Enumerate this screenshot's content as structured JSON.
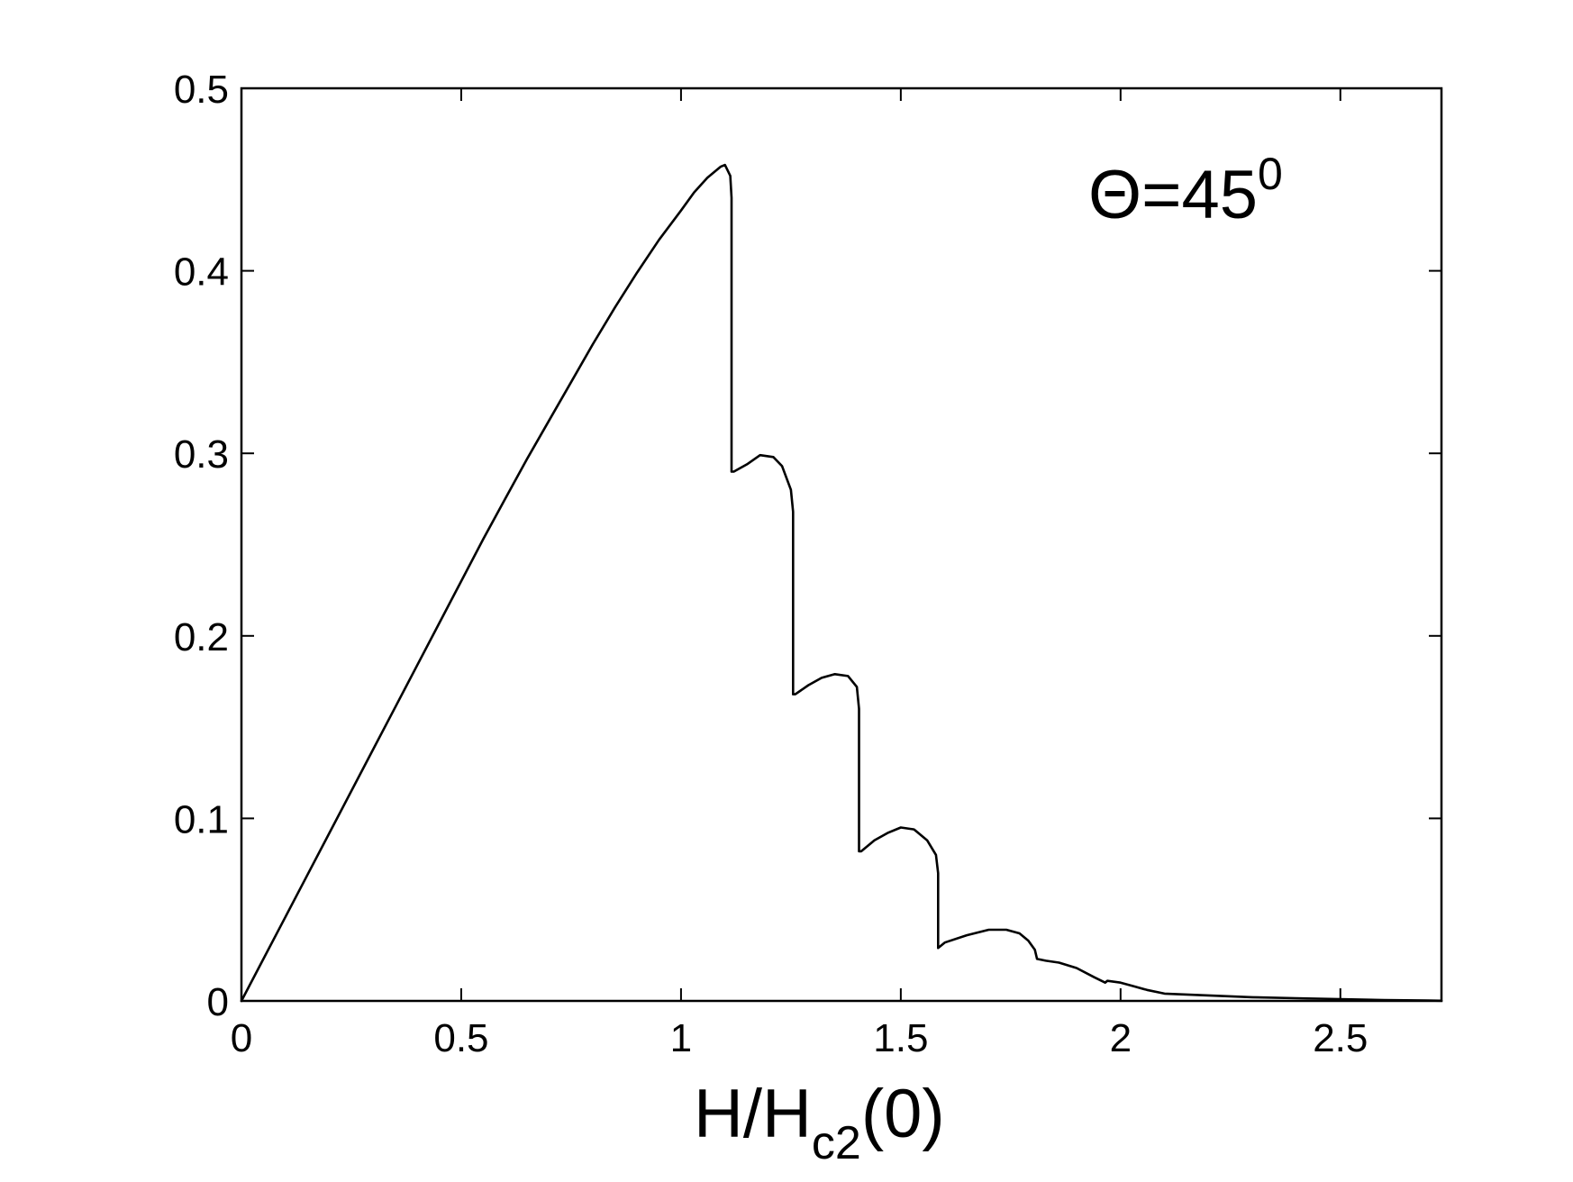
{
  "chart_data": {
    "type": "line",
    "title": "",
    "xlabel": {
      "main": "H/H",
      "subscript": "c2",
      "suffix": "(0)"
    },
    "ylabel": "",
    "annotation": {
      "main": "Θ=45",
      "superscript": "0"
    },
    "xlim": [
      0,
      2.73
    ],
    "ylim": [
      0,
      0.5
    ],
    "xticks": [
      0,
      0.5,
      1,
      1.5,
      2,
      2.5
    ],
    "xtick_labels": [
      "0",
      "0.5",
      "1",
      "1.5",
      "2",
      "2.5"
    ],
    "yticks": [
      0,
      0.1,
      0.2,
      0.3,
      0.4,
      0.5
    ],
    "ytick_labels": [
      "0",
      "0.1",
      "0.2",
      "0.3",
      "0.4",
      "0.5"
    ],
    "grid": false,
    "series": [
      {
        "color": "#000000",
        "x": [
          0,
          0.05,
          0.1,
          0.15,
          0.2,
          0.25,
          0.3,
          0.35,
          0.4,
          0.45,
          0.5,
          0.55,
          0.6,
          0.65,
          0.7,
          0.75,
          0.8,
          0.85,
          0.9,
          0.95,
          1.0,
          1.03,
          1.06,
          1.09,
          1.1,
          1.112,
          1.115,
          1.115,
          1.12,
          1.15,
          1.18,
          1.21,
          1.23,
          1.25,
          1.255,
          1.255,
          1.26,
          1.29,
          1.32,
          1.35,
          1.38,
          1.4,
          1.405,
          1.405,
          1.41,
          1.44,
          1.47,
          1.5,
          1.53,
          1.56,
          1.58,
          1.585,
          1.585,
          1.6,
          1.65,
          1.7,
          1.74,
          1.77,
          1.79,
          1.805,
          1.81,
          1.83,
          1.86,
          1.9,
          1.94,
          1.965,
          1.97,
          2.0,
          2.03,
          2.06,
          2.1,
          2.2,
          2.3,
          2.4,
          2.5,
          2.6,
          2.7,
          2.73
        ],
        "y": [
          0.0,
          0.023,
          0.046,
          0.069,
          0.092,
          0.115,
          0.138,
          0.161,
          0.184,
          0.207,
          0.23,
          0.253,
          0.275,
          0.297,
          0.318,
          0.339,
          0.36,
          0.38,
          0.399,
          0.417,
          0.433,
          0.443,
          0.451,
          0.457,
          0.458,
          0.452,
          0.44,
          0.29,
          0.29,
          0.294,
          0.299,
          0.298,
          0.293,
          0.28,
          0.268,
          0.168,
          0.168,
          0.173,
          0.177,
          0.179,
          0.178,
          0.172,
          0.16,
          0.082,
          0.082,
          0.088,
          0.092,
          0.095,
          0.094,
          0.088,
          0.08,
          0.07,
          0.029,
          0.032,
          0.036,
          0.039,
          0.039,
          0.037,
          0.033,
          0.028,
          0.023,
          0.022,
          0.021,
          0.018,
          0.013,
          0.01,
          0.011,
          0.01,
          0.008,
          0.006,
          0.004,
          0.003,
          0.002,
          0.0015,
          0.001,
          0.0005,
          0.0002,
          0.0001
        ]
      }
    ]
  }
}
